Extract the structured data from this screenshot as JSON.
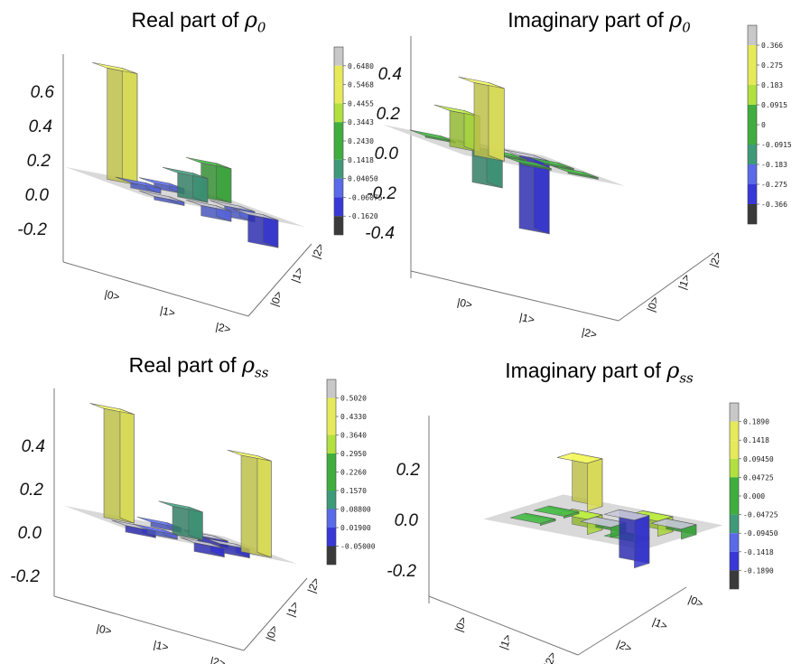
{
  "chart_data": [
    {
      "type": "bar3d",
      "title_prefix": "Real part of ",
      "title_symbol": "ρ",
      "title_sub": "0",
      "zticks": [
        "0.6",
        "0.4",
        "0.2",
        "0.0",
        "-0.2"
      ],
      "zlim": [
        -0.25,
        0.65
      ],
      "row_labels": [
        "|0>",
        "|1>",
        "|2>"
      ],
      "col_labels": [
        "|0>",
        "|1>",
        "|2>"
      ],
      "colorbar_ticks": [
        "0.6480",
        "0.5468",
        "0.4455",
        "0.3443",
        "0.2430",
        "0.1418",
        "0.04050",
        "-0.06075",
        "-0.1620"
      ],
      "bars": [
        {
          "row": 0,
          "col": 0,
          "value": 0.648
        },
        {
          "row": 0,
          "col": 1,
          "value": 0.03
        },
        {
          "row": 0,
          "col": 2,
          "value": 0.2
        },
        {
          "row": 1,
          "col": 0,
          "value": 0.03
        },
        {
          "row": 1,
          "col": 1,
          "value": 0.14
        },
        {
          "row": 1,
          "col": 2,
          "value": -0.06
        },
        {
          "row": 2,
          "col": 0,
          "value": -0.02
        },
        {
          "row": 2,
          "col": 1,
          "value": -0.06
        },
        {
          "row": 2,
          "col": 2,
          "value": -0.16
        }
      ]
    },
    {
      "type": "bar3d",
      "title_prefix": "Imaginary part of ",
      "title_symbol": "ρ",
      "title_sub": "0",
      "zticks": [
        "0.4",
        "0.2",
        "0.0",
        "-0.2",
        "-0.4"
      ],
      "zlim": [
        -0.42,
        0.42
      ],
      "row_labels": [
        "|0>",
        "|1>",
        "|2>"
      ],
      "col_labels": [
        "|0>",
        "|1>",
        "|2>"
      ],
      "colorbar_ticks": [
        "0.366",
        "0.275",
        "0.183",
        "0.0915",
        "0",
        "-0.0915",
        "-0.183",
        "-0.275",
        "-0.366"
      ],
      "bars": [
        {
          "row": 0,
          "col": 0,
          "value": 0.0
        },
        {
          "row": 0,
          "col": 1,
          "value": -0.18
        },
        {
          "row": 0,
          "col": 2,
          "value": -0.366
        },
        {
          "row": 1,
          "col": 0,
          "value": 0.18
        },
        {
          "row": 1,
          "col": 1,
          "value": 0.0
        },
        {
          "row": 1,
          "col": 2,
          "value": 0.0
        },
        {
          "row": 2,
          "col": 0,
          "value": 0.366
        },
        {
          "row": 2,
          "col": 1,
          "value": 0.0
        },
        {
          "row": 2,
          "col": 2,
          "value": 0.0
        }
      ]
    },
    {
      "type": "bar3d",
      "title_prefix": "Real part of ",
      "title_symbol": "ρ",
      "title_sub": "ss",
      "zticks": [
        "0.4",
        "0.2",
        "0.0",
        "-0.2"
      ],
      "zlim": [
        -0.22,
        0.52
      ],
      "row_labels": [
        "|0>",
        "|1>",
        "|2>"
      ],
      "col_labels": [
        "|0>",
        "|1>",
        "|2>"
      ],
      "colorbar_ticks": [
        "0.5020",
        "0.4330",
        "0.3640",
        "0.2950",
        "0.2260",
        "0.1570",
        "0.08800",
        "0.01900",
        "-0.05000"
      ],
      "bars": [
        {
          "row": 0,
          "col": 0,
          "value": 0.502
        },
        {
          "row": 0,
          "col": 1,
          "value": 0.02
        },
        {
          "row": 0,
          "col": 2,
          "value": -0.03
        },
        {
          "row": 1,
          "col": 0,
          "value": -0.03
        },
        {
          "row": 1,
          "col": 1,
          "value": 0.13
        },
        {
          "row": 1,
          "col": 2,
          "value": -0.04
        },
        {
          "row": 2,
          "col": 0,
          "value": 0.02
        },
        {
          "row": 2,
          "col": 1,
          "value": -0.04
        },
        {
          "row": 2,
          "col": 2,
          "value": 0.445
        }
      ]
    },
    {
      "type": "bar3d",
      "title_prefix": "Imaginary part of ",
      "title_symbol": "ρ",
      "title_sub": "ss",
      "zticks": [
        "0.2",
        "0.0",
        "-0.2"
      ],
      "zlim": [
        -0.22,
        0.22
      ],
      "row_labels": [
        "|2>",
        "|1>",
        "|0>"
      ],
      "col_labels": [
        "|0>",
        "|1>",
        "|2>"
      ],
      "colorbar_ticks": [
        "0.1890",
        "0.1418",
        "0.09450",
        "0.04725",
        "0.000",
        "-0.04725",
        "-0.09450",
        "-0.1418",
        "-0.1890"
      ],
      "bars": [
        {
          "row": 0,
          "col": 0,
          "value": 0.0
        },
        {
          "row": 0,
          "col": 1,
          "value": 0.06
        },
        {
          "row": 0,
          "col": 2,
          "value": 0.0
        },
        {
          "row": 1,
          "col": 0,
          "value": 0.0
        },
        {
          "row": 1,
          "col": 1,
          "value": -0.04
        },
        {
          "row": 1,
          "col": 2,
          "value": 0.06
        },
        {
          "row": 2,
          "col": 0,
          "value": 0.189
        },
        {
          "row": 2,
          "col": 1,
          "value": -0.189
        },
        {
          "row": 2,
          "col": 2,
          "value": -0.04
        }
      ]
    }
  ],
  "colors": {
    "plane": "#d2d2d2",
    "cb_top": "#c8c8c8",
    "cb_bottom": "#3a3a3a",
    "yellow": "#e6ea5a",
    "lime": "#b2e040",
    "green": "#3fae3f",
    "teal": "#3f9a7a",
    "blue": "#5a6ae8",
    "navy": "#3838d8"
  }
}
